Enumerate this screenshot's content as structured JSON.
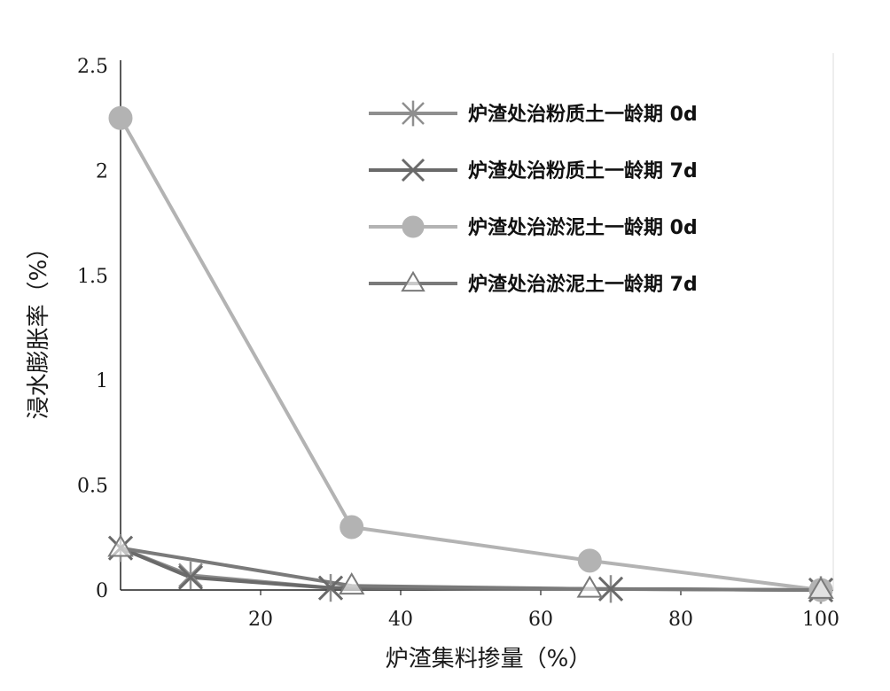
{
  "chart_data": {
    "type": "line",
    "title": "",
    "xlabel": "炉渣集料掺量（%）",
    "ylabel": "浸水膨胀率（%）",
    "xlim": [
      0,
      100
    ],
    "ylim": [
      0,
      2.5
    ],
    "xticks": [
      20,
      40,
      60,
      80,
      100
    ],
    "yticks": [
      0,
      0.5,
      1,
      1.5,
      2,
      2.5
    ],
    "xtick_labels": [
      "20",
      "40",
      "60",
      "80",
      "100"
    ],
    "ytick_labels": [
      "0",
      "0.5",
      "1",
      "1.5",
      "2",
      "2.5"
    ],
    "grid": false,
    "legend_position": "top-right",
    "series": [
      {
        "name": "炉渣处治粉质土一龄期 0d",
        "marker": "asterisk",
        "color": "#8f8f8f",
        "x": [
          0,
          10,
          30,
          70,
          100
        ],
        "y": [
          0.2,
          0.07,
          0.01,
          0.005,
          0.0
        ]
      },
      {
        "name": "炉渣处治粉质土一龄期 7d",
        "marker": "x",
        "color": "#6a6a6a",
        "x": [
          0,
          10,
          30,
          70,
          100
        ],
        "y": [
          0.2,
          0.06,
          0.01,
          0.005,
          0.0
        ]
      },
      {
        "name": "炉渣处治淤泥土一龄期 0d",
        "marker": "circle",
        "color": "#b3b3b3",
        "x": [
          0,
          33,
          67,
          100
        ],
        "y": [
          2.25,
          0.3,
          0.14,
          0.0
        ]
      },
      {
        "name": "炉渣处治淤泥土一龄期 7d",
        "marker": "triangle",
        "color": "#7a7a7a",
        "x": [
          0,
          33,
          67,
          100
        ],
        "y": [
          0.2,
          0.02,
          0.005,
          0.0
        ]
      }
    ]
  }
}
